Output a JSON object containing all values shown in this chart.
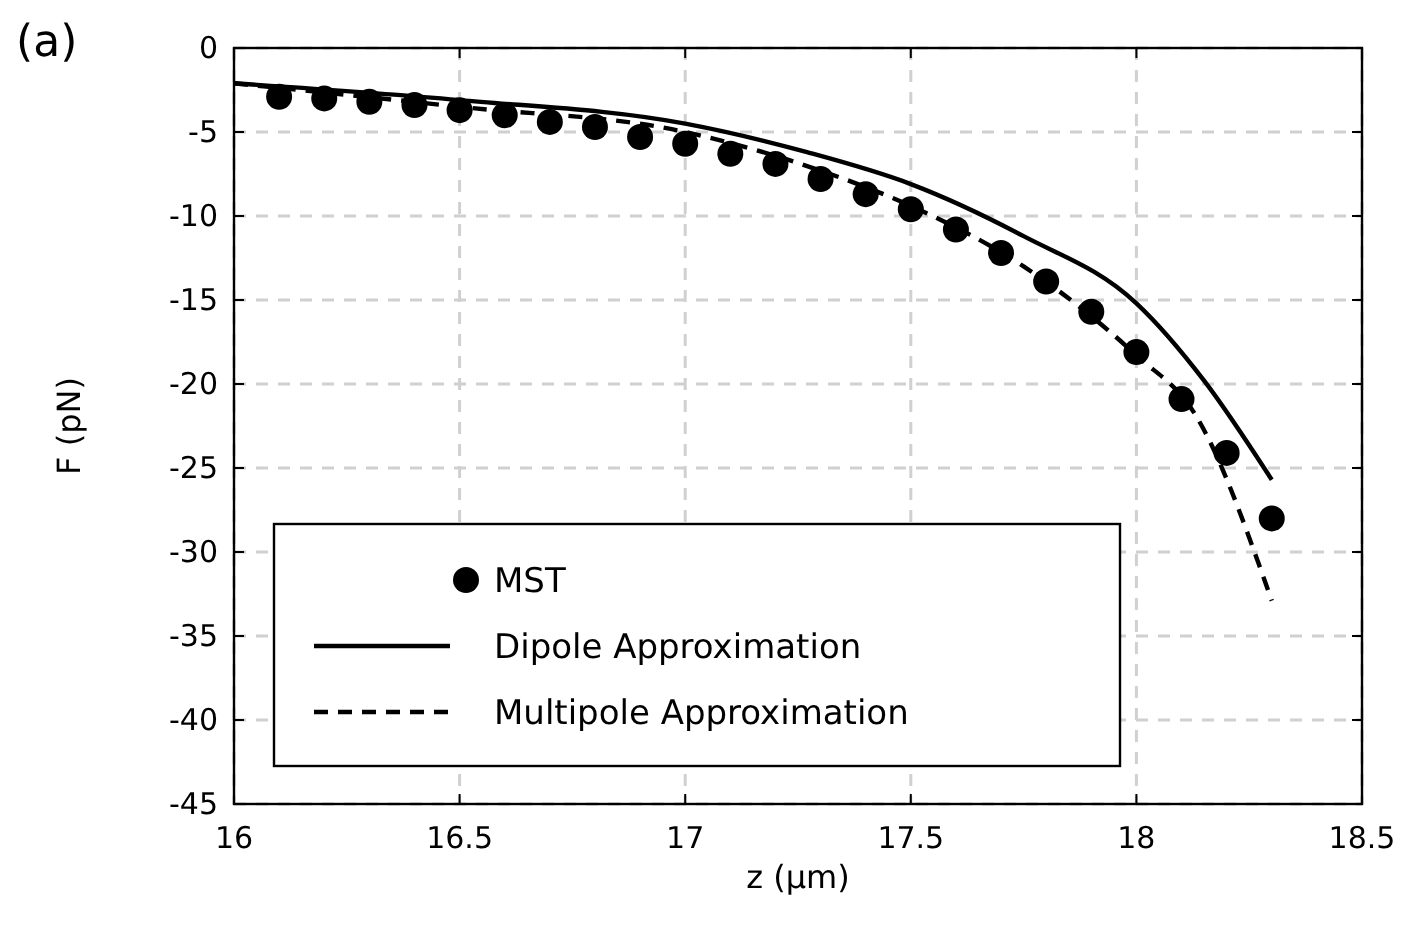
{
  "chart_data": {
    "type": "line",
    "title": "(a)",
    "xlabel": "z (µm)",
    "ylabel": "F  (pN)",
    "xlim": [
      16,
      18.5
    ],
    "xticks": [
      16,
      16.5,
      17,
      17.5,
      18,
      18.5
    ],
    "ylim": [
      -45,
      0
    ],
    "yticks": [
      -45,
      -40,
      -35,
      -30,
      -25,
      -20,
      -15,
      -10,
      -5,
      0
    ],
    "grid": true,
    "legend": "bottom left",
    "series": [
      {
        "name": "MST",
        "type": "scatter",
        "marker": "circle",
        "color": "#000000",
        "x": [
          16.1,
          16.2,
          16.3,
          16.4,
          16.5,
          16.6,
          16.7,
          16.8,
          16.9,
          17.0,
          17.1,
          17.2,
          17.3,
          17.4,
          17.5,
          17.6,
          17.7,
          17.8,
          17.9,
          18.0,
          18.1,
          18.2,
          18.3
        ],
        "values": [
          -2.9,
          -3.0,
          -3.2,
          -3.4,
          -3.7,
          -4.0,
          -4.4,
          -4.7,
          -5.3,
          -5.7,
          -6.3,
          -6.9,
          -7.8,
          -8.7,
          -9.6,
          -10.8,
          -12.2,
          -13.9,
          -15.7,
          -18.1,
          -20.9,
          -24.1,
          -28.0
        ]
      },
      {
        "name": "Dipole Approximation",
        "line_style": "solid",
        "color": "#000000",
        "x": [
          16,
          16.5,
          17,
          17.27,
          17.5,
          17.75,
          18,
          18.15,
          18.3
        ],
        "values": [
          -2.1,
          -3.1,
          -4.5,
          -6.2,
          -8.1,
          -11.2,
          -15.2,
          -19.8,
          -25.7
        ]
      },
      {
        "name": "Multipole Approximation",
        "line_style": "dashed",
        "color": "#000000",
        "x": [
          16,
          16.5,
          17,
          17.3,
          17.5,
          17.75,
          18,
          18.13,
          18.3
        ],
        "values": [
          -2.1,
          -3.5,
          -5.0,
          -7.3,
          -9.4,
          -13.0,
          -18.3,
          -21.8,
          -32.9
        ]
      }
    ]
  }
}
